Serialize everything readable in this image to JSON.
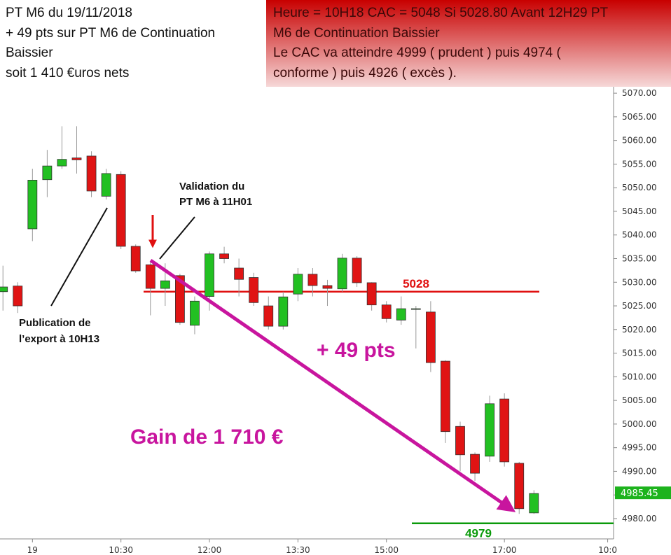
{
  "header": {
    "left": [
      "PT M6 du 19/11/2018",
      "+ 49 pts sur PT M6 de Continuation",
      "Baissier",
      "soit 1 410 €uros nets"
    ],
    "right": [
      "Heure = 10H18 CAC = 5048 Si 5028.80 Avant 12H29  PT",
      "M6 de Continuation Baissier",
      "Le CAC va atteindre 4999 ( prudent ) puis 4974 (",
      "conforme ) puis 4926 ( excès )."
    ]
  },
  "annotations": {
    "validation": [
      "Validation du",
      "PT M6 à 11H01"
    ],
    "publication": [
      "Publication de",
      "l’export à 10H13"
    ],
    "pts": "+ 49 pts",
    "gain": "Gain de 1 710 €"
  },
  "chart_data": {
    "type": "candlestick",
    "x": [
      8.5,
      8.75,
      9,
      9.25,
      9.5,
      9.75,
      10,
      10.25,
      10.5,
      10.75,
      11,
      11.25,
      11.5,
      11.75,
      12,
      12.25,
      12.5,
      12.75,
      13,
      13.25,
      13.5,
      13.75,
      14,
      14.25,
      14.5,
      14.75,
      15,
      15.25,
      15.5,
      15.75,
      16,
      16.25,
      16.5,
      16.75,
      17,
      17.25,
      17.5
    ],
    "open": [
      5028,
      5029.2,
      5041.3,
      5051.7,
      5054.6,
      5056.3,
      5056.7,
      5048.2,
      5052.8,
      5037.6,
      5033.7,
      5028.7,
      5031.4,
      5020.9,
      5027,
      5036,
      5033,
      5031,
      5025,
      5020.7,
      5027.5,
      5031.7,
      5029.3,
      5028.6,
      5035.1,
      5029.9,
      5025.2,
      5022,
      5024.4,
      5023.7,
      5013.3,
      4999.5,
      4993.6,
      4993.2,
      5005.3,
      4991.7,
      4981.2
    ],
    "high": [
      5033.5,
      5030,
      5054,
      5058,
      5063,
      5063,
      5057.7,
      5054,
      5053.5,
      5038,
      5034.5,
      5034,
      5031.8,
      5027,
      5036.5,
      5037.5,
      5035,
      5032,
      5027,
      5028,
      5033,
      5033,
      5030.5,
      5036,
      5035.5,
      5030,
      5026,
      5027,
      5025,
      5026,
      5013.5,
      5000.5,
      4994,
      5006,
      5006.5,
      4992,
      4986
    ],
    "low": [
      5024,
      5023.5,
      5038.7,
      5048,
      5054,
      5053,
      5048,
      5047.5,
      5037,
      5032,
      5023,
      5025,
      5021,
      5019,
      5024,
      5034,
      5027,
      5025,
      5020,
      5020,
      5026,
      5027,
      5025,
      5028,
      5029,
      5024,
      5021.5,
      5021,
      5016,
      5011,
      4996,
      4990,
      4988,
      4992,
      4991,
      4981,
      4981
    ],
    "close": [
      5029,
      5025,
      5051.6,
      5054.6,
      5056,
      5055.9,
      5049.3,
      5053,
      5037.6,
      5032.4,
      5028.7,
      5030.3,
      5021.5,
      5026,
      5036,
      5035,
      5030.6,
      5025.7,
      5020.7,
      5026.9,
      5031.7,
      5029.3,
      5028.7,
      5035.1,
      5029.9,
      5025.2,
      5022.3,
      5024.4,
      5024.4,
      5013,
      4998.4,
      4993.5,
      4989.6,
      5004.3,
      4992,
      4982.1,
      4985.3
    ],
    "up_color": "#22c022",
    "down_color": "#e01414",
    "xlim": [
      8.45,
      18.85
    ],
    "xticks": [
      {
        "value": 9,
        "label": "19"
      },
      {
        "value": 10.5,
        "label": "10:30"
      },
      {
        "value": 12,
        "label": "12:00"
      },
      {
        "value": 13.5,
        "label": "13:30"
      },
      {
        "value": 15,
        "label": "15:00"
      },
      {
        "value": 17,
        "label": "17:00"
      },
      {
        "value": 18.75,
        "label": "10:0"
      }
    ],
    "ylim": [
      4975.7,
      5071.5
    ],
    "yticks": [
      {
        "value": 4980,
        "label": "4980.00"
      },
      {
        "value": 4985,
        "label": "4985.00"
      },
      {
        "value": 4990,
        "label": "4990.00"
      },
      {
        "value": 4995,
        "label": "4995.00"
      },
      {
        "value": 5000,
        "label": "5000.00"
      },
      {
        "value": 5005,
        "label": "5005.00"
      },
      {
        "value": 5010,
        "label": "5010.00"
      },
      {
        "value": 5015,
        "label": "5015.00"
      },
      {
        "value": 5020,
        "label": "5020.00"
      },
      {
        "value": 5025,
        "label": "5025.00"
      },
      {
        "value": 5030,
        "label": "5030.00"
      },
      {
        "value": 5035,
        "label": "5035.00"
      },
      {
        "value": 5040,
        "label": "5040.00"
      },
      {
        "value": 5045,
        "label": "5045.00"
      },
      {
        "value": 5050,
        "label": "5050.00"
      },
      {
        "value": 5055,
        "label": "5055.00"
      },
      {
        "value": 5060,
        "label": "5060.00"
      },
      {
        "value": 5065,
        "label": "5065.00"
      },
      {
        "value": 5070,
        "label": "5070.00"
      }
    ],
    "last_price": 4985.45,
    "last_price_color": "#1db31d",
    "levels": [
      {
        "value": 5028,
        "color": "#e01010"
      },
      {
        "value": 4979,
        "color": "#0a9a0a"
      }
    ]
  }
}
